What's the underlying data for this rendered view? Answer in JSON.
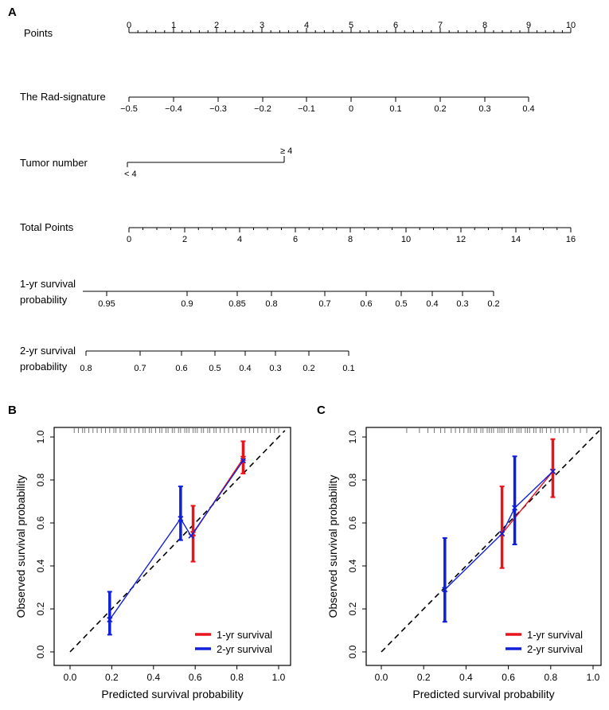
{
  "panels": {
    "A": "A",
    "B": "B",
    "C": "C"
  },
  "chart_data": [
    {
      "type": "nomogram",
      "panel": "A",
      "rows": [
        {
          "label": "Points",
          "kind": "points",
          "ticks": [
            "0",
            "1",
            "2",
            "3",
            "4",
            "5",
            "6",
            "7",
            "8",
            "9",
            "10"
          ]
        },
        {
          "label": "The Rad-signature",
          "kind": "scale",
          "ticks": [
            "−0.5",
            "−0.4",
            "−0.3",
            "−0.2",
            "−0.1",
            "0",
            "0.1",
            "0.2",
            "0.3",
            "0.4"
          ]
        },
        {
          "label": "Tumor number",
          "kind": "categorical",
          "levels": [
            "< 4",
            "≥ 4"
          ],
          "points": [
            0,
            3.5
          ]
        },
        {
          "label": "Total Points",
          "kind": "scale",
          "ticks": [
            "0",
            "2",
            "4",
            "6",
            "8",
            "10",
            "12",
            "14",
            "16"
          ]
        },
        {
          "label": "1-yr survival probability",
          "label_lines": [
            "1-yr survival",
            "probability"
          ],
          "kind": "scale",
          "ticks": [
            "0.95",
            "0.9",
            "0.85",
            "0.8",
            "0.7",
            "0.6",
            "0.5",
            "0.4",
            "0.3",
            "0.2"
          ]
        },
        {
          "label": "2-yr survival probability",
          "label_lines": [
            "2-yr survival",
            "probability"
          ],
          "kind": "scale",
          "ticks": [
            "0.8",
            "0.7",
            "0.6",
            "0.5",
            "0.4",
            "0.3",
            "0.2",
            "0.1"
          ]
        }
      ]
    },
    {
      "type": "calibration",
      "panel": "B",
      "xlabel": "Predicted survival probability",
      "ylabel": "Observed survival probability",
      "xlim": [
        0,
        1
      ],
      "ylim": [
        0,
        1
      ],
      "xticks": [
        "0.0",
        "0.2",
        "0.4",
        "0.6",
        "0.8",
        "1.0"
      ],
      "yticks": [
        "0.0",
        "0.2",
        "0.4",
        "0.6",
        "0.8",
        "1.0"
      ],
      "legend": {
        "position": "bottom-right"
      },
      "series": [
        {
          "name": "1-yr survival",
          "color": "#e8141c",
          "points": [
            {
              "x": 0.59,
              "y": 0.55,
              "lo": 0.42,
              "hi": 0.68
            },
            {
              "x": 0.83,
              "y": 0.9,
              "lo": 0.83,
              "hi": 0.98
            }
          ]
        },
        {
          "name": "2-yr survival",
          "color": "#1020d8",
          "points": [
            {
              "x": 0.19,
              "y": 0.15,
              "lo": 0.08,
              "hi": 0.28
            },
            {
              "x": 0.53,
              "y": 0.62,
              "lo": 0.52,
              "hi": 0.77
            },
            {
              "x": 0.58,
              "y": 0.54,
              "lo": 0.54,
              "hi": 0.54
            },
            {
              "x": 0.83,
              "y": 0.89,
              "lo": 0.89,
              "hi": 0.89
            }
          ]
        }
      ],
      "rug": [
        0.02,
        0.04,
        0.06,
        0.07,
        0.09,
        0.11,
        0.13,
        0.15,
        0.17,
        0.19,
        0.21,
        0.22,
        0.24,
        0.26,
        0.27,
        0.29,
        0.31,
        0.33,
        0.35,
        0.36,
        0.38,
        0.39,
        0.41,
        0.43,
        0.44,
        0.46,
        0.47,
        0.49,
        0.5,
        0.52,
        0.53,
        0.55,
        0.56,
        0.57,
        0.59,
        0.6,
        0.61,
        0.63,
        0.64,
        0.66,
        0.67,
        0.69,
        0.7,
        0.72,
        0.74,
        0.76,
        0.78,
        0.8,
        0.82,
        0.84,
        0.86,
        0.88,
        0.9,
        0.92,
        0.94,
        0.96,
        0.98,
        1.0
      ]
    },
    {
      "type": "calibration",
      "panel": "C",
      "xlabel": "Predicted survival probability",
      "ylabel": "Observed survival probability",
      "xlim": [
        0,
        1
      ],
      "ylim": [
        0,
        1
      ],
      "xticks": [
        "0.0",
        "0.2",
        "0.4",
        "0.6",
        "0.8",
        "1.0"
      ],
      "yticks": [
        "0.0",
        "0.2",
        "0.4",
        "0.6",
        "0.8",
        "1.0"
      ],
      "legend": {
        "position": "bottom-right"
      },
      "series": [
        {
          "name": "1-yr survival",
          "color": "#e8141c",
          "points": [
            {
              "x": 0.57,
              "y": 0.55,
              "lo": 0.39,
              "hi": 0.77
            },
            {
              "x": 0.81,
              "y": 0.84,
              "lo": 0.72,
              "hi": 0.99
            }
          ]
        },
        {
          "name": "2-yr survival",
          "color": "#1020d8",
          "points": [
            {
              "x": 0.3,
              "y": 0.29,
              "lo": 0.14,
              "hi": 0.53
            },
            {
              "x": 0.63,
              "y": 0.67,
              "lo": 0.5,
              "hi": 0.91
            },
            {
              "x": 0.57,
              "y": 0.55,
              "lo": 0.55,
              "hi": 0.55
            },
            {
              "x": 0.81,
              "y": 0.84,
              "lo": 0.84,
              "hi": 0.84
            }
          ]
        }
      ],
      "rug": [
        0.12,
        0.18,
        0.22,
        0.25,
        0.28,
        0.3,
        0.33,
        0.35,
        0.37,
        0.39,
        0.41,
        0.42,
        0.44,
        0.45,
        0.47,
        0.48,
        0.5,
        0.51,
        0.52,
        0.53,
        0.55,
        0.56,
        0.57,
        0.58,
        0.6,
        0.61,
        0.62,
        0.64,
        0.65,
        0.66,
        0.68,
        0.69,
        0.7,
        0.72,
        0.73,
        0.75,
        0.76,
        0.78,
        0.8,
        0.82,
        0.84,
        0.86,
        0.88,
        0.91,
        0.94,
        0.97
      ]
    }
  ]
}
